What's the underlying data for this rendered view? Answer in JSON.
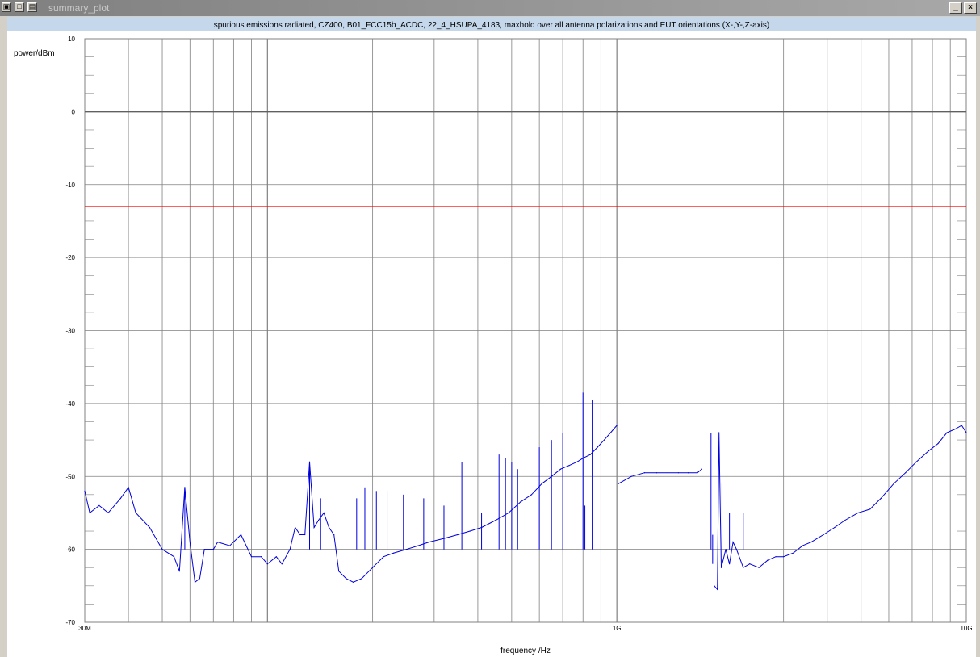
{
  "window": {
    "title": "summary_plot",
    "minimize_label": "_",
    "close_label": "×",
    "icons": [
      "window-menu-icon",
      "restore-icon",
      "tile-icon"
    ]
  },
  "colors": {
    "trace": "#0000dd",
    "limit_line": "#ff0000",
    "grid": "#808080",
    "zero_line": "#606060",
    "title_band": "#c5d7ea"
  },
  "chart_data": {
    "type": "line",
    "title": "spurious emissions radiated, CZ400, B01_FCC15b_ACDC, 22_4_HSUPA_4183, maxhold over all antenna polarizations and EUT orientations (X-,Y-,Z-axis)",
    "xlabel": "frequency /Hz",
    "ylabel": "power/dBm",
    "x_scale": "log",
    "xlim": [
      30000000,
      10000000000
    ],
    "ylim": [
      -70,
      10
    ],
    "x_tick_labels": [
      {
        "value": 30000000,
        "label": "30M"
      },
      {
        "value": 1000000000,
        "label": "1G"
      },
      {
        "value": 10000000000,
        "label": "10G"
      }
    ],
    "y_ticks": [
      10,
      0,
      -10,
      -20,
      -30,
      -40,
      -50,
      -60,
      -70
    ],
    "grid": true,
    "reference_lines": [
      {
        "name": "0 dBm",
        "y": 0
      },
      {
        "name": "limit",
        "y": -13
      }
    ],
    "series": [
      {
        "points": [
          [
            30000000,
            -52
          ],
          [
            31000000,
            -55
          ],
          [
            33000000,
            -54
          ],
          [
            35000000,
            -55
          ],
          [
            38000000,
            -53
          ],
          [
            40000000,
            -51.5
          ],
          [
            42000000,
            -55
          ],
          [
            46000000,
            -57
          ],
          [
            50000000,
            -60
          ],
          [
            54000000,
            -61
          ],
          [
            56000000,
            -63
          ],
          [
            58000000,
            -51.5
          ],
          [
            60000000,
            -59
          ],
          [
            62000000,
            -64.5
          ],
          [
            64000000,
            -64
          ],
          [
            66000000,
            -60
          ],
          [
            70000000,
            -60
          ],
          [
            72000000,
            -59
          ],
          [
            78000000,
            -59.5
          ],
          [
            84000000,
            -58
          ],
          [
            90000000,
            -61
          ],
          [
            96000000,
            -61
          ],
          [
            100000000,
            -62
          ],
          [
            106000000,
            -61
          ],
          [
            110000000,
            -62
          ],
          [
            116000000,
            -60
          ],
          [
            120000000,
            -57
          ],
          [
            124000000,
            -58
          ],
          [
            128000000,
            -58
          ],
          [
            132000000,
            -48
          ],
          [
            136000000,
            -57
          ],
          [
            140000000,
            -56
          ],
          [
            145000000,
            -55
          ],
          [
            150000000,
            -57
          ],
          [
            155000000,
            -58
          ],
          [
            160000000,
            -63
          ],
          [
            168000000,
            -64
          ],
          [
            176000000,
            -64.5
          ],
          [
            186000000,
            -64
          ],
          [
            200000000,
            -62.5
          ],
          [
            215000000,
            -61
          ],
          [
            230000000,
            -60.5
          ],
          [
            250000000,
            -60
          ],
          [
            270000000,
            -59.5
          ],
          [
            290000000,
            -59
          ],
          [
            320000000,
            -58.5
          ],
          [
            350000000,
            -58
          ],
          [
            380000000,
            -57.5
          ],
          [
            410000000,
            -57
          ],
          [
            450000000,
            -56
          ],
          [
            490000000,
            -55
          ],
          [
            530000000,
            -53.5
          ],
          [
            570000000,
            -52.5
          ],
          [
            610000000,
            -51
          ],
          [
            650000000,
            -50
          ],
          [
            690000000,
            -49
          ],
          [
            730000000,
            -48.5
          ],
          [
            770000000,
            -48
          ],
          [
            800000000,
            -47.5
          ],
          [
            840000000,
            -47
          ],
          [
            880000000,
            -46
          ],
          [
            920000000,
            -45
          ],
          [
            960000000,
            -44
          ],
          [
            1000000000,
            -43
          ]
        ]
      },
      {
        "points": [
          [
            1010000000,
            -51
          ],
          [
            1100000000,
            -50
          ],
          [
            1200000000,
            -49.5
          ],
          [
            1300000000,
            -49.5
          ],
          [
            1400000000,
            -49.5
          ],
          [
            1500000000,
            -49.5
          ],
          [
            1600000000,
            -49.5
          ],
          [
            1700000000,
            -49.5
          ],
          [
            1750000000,
            -49
          ]
        ]
      },
      {
        "points": [
          [
            1900000000,
            -65
          ],
          [
            1940000000,
            -65.5
          ],
          [
            1960000000,
            -44
          ],
          [
            1990000000,
            -62.5
          ],
          [
            2050000000,
            -60
          ],
          [
            2100000000,
            -62
          ],
          [
            2150000000,
            -59
          ],
          [
            2200000000,
            -60
          ],
          [
            2300000000,
            -62.5
          ],
          [
            2400000000,
            -62
          ],
          [
            2550000000,
            -62.5
          ],
          [
            2700000000,
            -61.5
          ],
          [
            2850000000,
            -61
          ],
          [
            3000000000,
            -61
          ],
          [
            3200000000,
            -60.5
          ],
          [
            3400000000,
            -59.5
          ],
          [
            3600000000,
            -59
          ],
          [
            3900000000,
            -58
          ],
          [
            4200000000,
            -57
          ],
          [
            4500000000,
            -56
          ],
          [
            4900000000,
            -55
          ],
          [
            5300000000,
            -54.5
          ],
          [
            5700000000,
            -53
          ],
          [
            6200000000,
            -51
          ],
          [
            6700000000,
            -49.5
          ],
          [
            7200000000,
            -48
          ],
          [
            7800000000,
            -46.5
          ],
          [
            8300000000,
            -45.5
          ],
          [
            8800000000,
            -44
          ],
          [
            9300000000,
            -43.5
          ],
          [
            9700000000,
            -43
          ],
          [
            10000000000,
            -44
          ]
        ]
      }
    ],
    "spikes": [
      {
        "x": 58000000,
        "y": -51.5
      },
      {
        "x": 132000000,
        "y": -48
      },
      {
        "x": 142000000,
        "y": -53
      },
      {
        "x": 180000000,
        "y": -53
      },
      {
        "x": 190000000,
        "y": -51.5
      },
      {
        "x": 205000000,
        "y": -52
      },
      {
        "x": 220000000,
        "y": -52
      },
      {
        "x": 245000000,
        "y": -52.5
      },
      {
        "x": 280000000,
        "y": -53
      },
      {
        "x": 320000000,
        "y": -54
      },
      {
        "x": 360000000,
        "y": -48
      },
      {
        "x": 410000000,
        "y": -55
      },
      {
        "x": 460000000,
        "y": -47
      },
      {
        "x": 480000000,
        "y": -47.5
      },
      {
        "x": 500000000,
        "y": -48
      },
      {
        "x": 520000000,
        "y": -49
      },
      {
        "x": 600000000,
        "y": -46
      },
      {
        "x": 650000000,
        "y": -45
      },
      {
        "x": 700000000,
        "y": -44
      },
      {
        "x": 800000000,
        "y": -38.5
      },
      {
        "x": 810000000,
        "y": -54
      },
      {
        "x": 850000000,
        "y": -39.5
      },
      {
        "x": 1860000000,
        "y": -44
      },
      {
        "x": 1880000000,
        "y": -62
      },
      {
        "x": 2000000000,
        "y": -51
      },
      {
        "x": 2100000000,
        "y": -55
      },
      {
        "x": 2300000000,
        "y": -55
      }
    ]
  }
}
